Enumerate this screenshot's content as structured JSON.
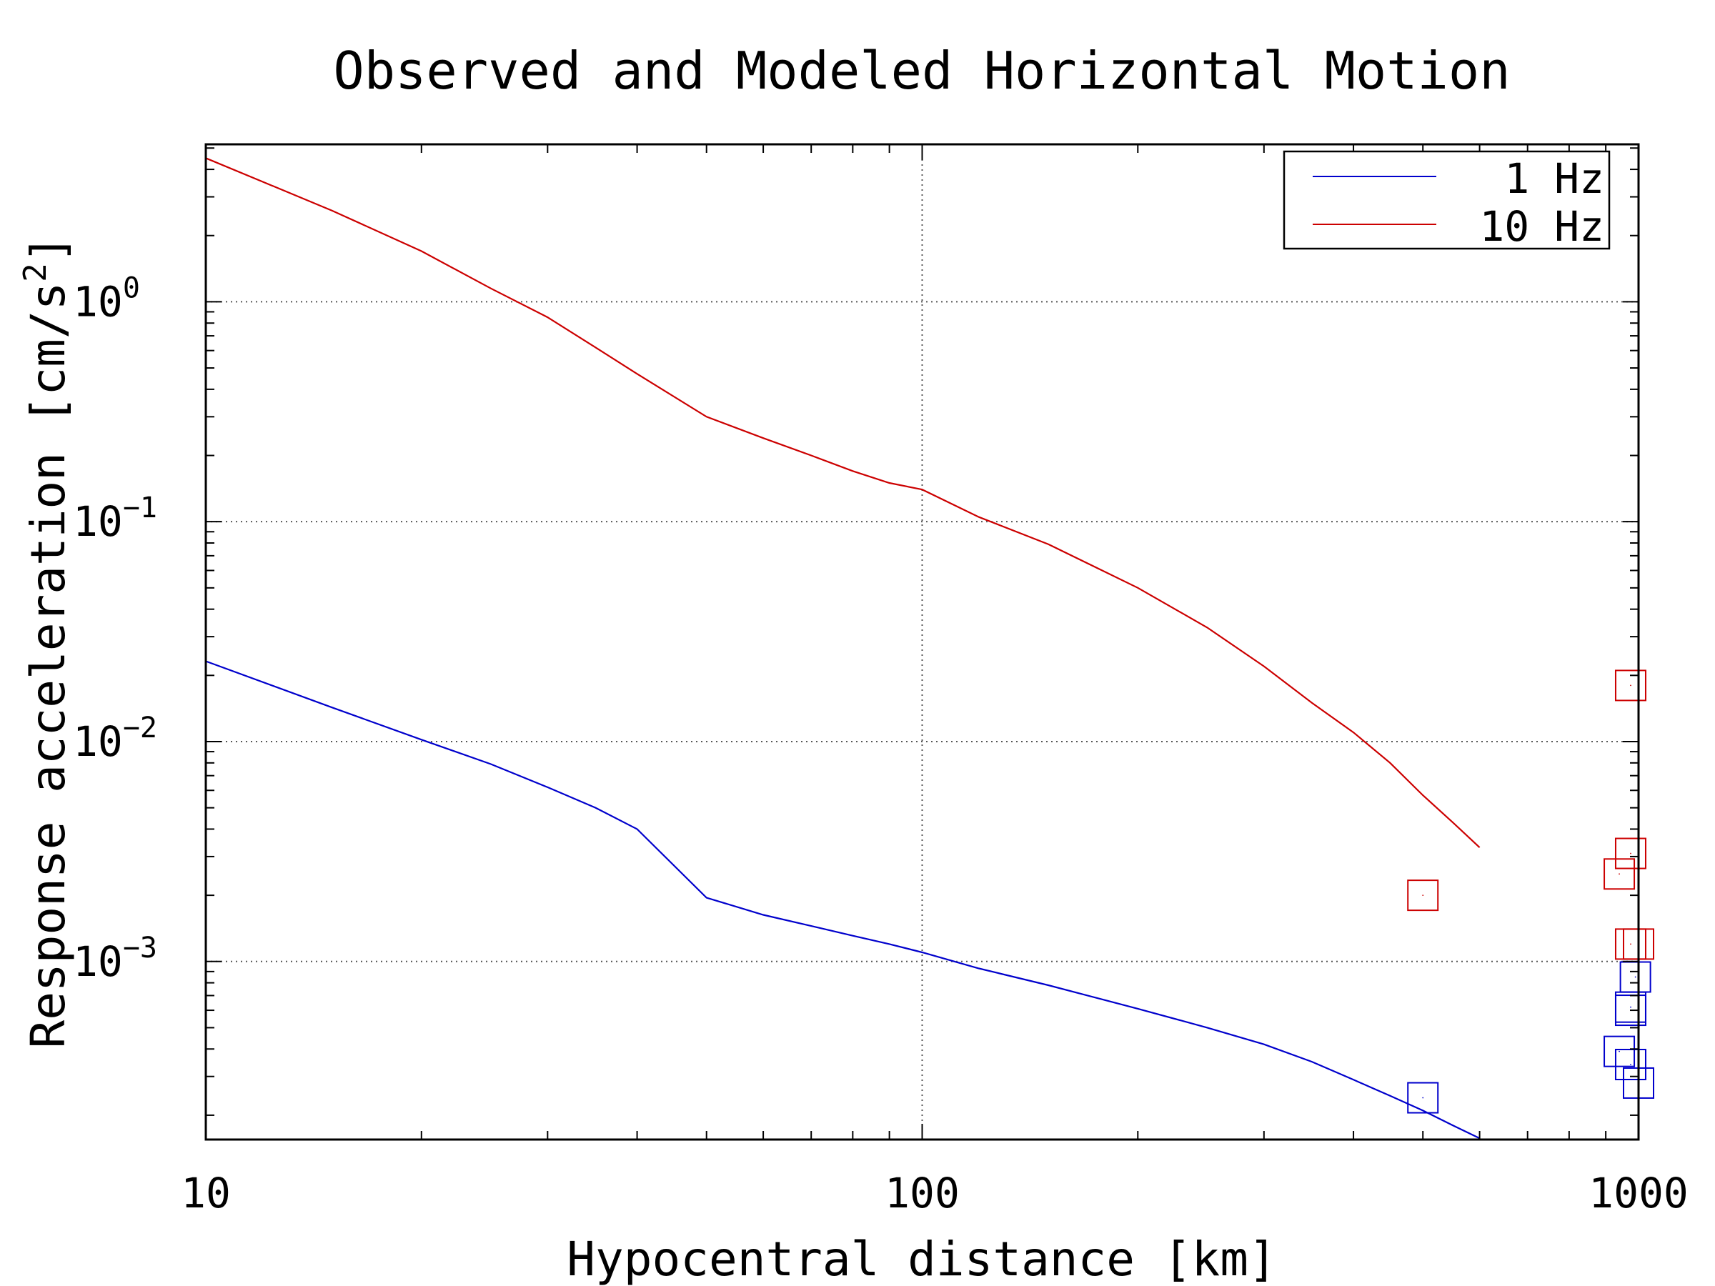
{
  "chart_data": {
    "type": "line",
    "title": "Observed and Modeled Horizontal Motion",
    "xlabel": "Hypocentral distance [km]",
    "ylabel": "Response acceleration [cm/s",
    "ylabel_sup": "2",
    "ylabel_end": "]",
    "x_scale": "log",
    "y_scale": "log",
    "xlim": [
      10,
      1000
    ],
    "ylim": [
      0.000155,
      5.2
    ],
    "grid": "dotted at major ticks",
    "legend_position": "top-right",
    "x_ticks": [
      {
        "value": 10,
        "label": "10"
      },
      {
        "value": 100,
        "label": "100"
      },
      {
        "value": 1000,
        "label": "1000"
      }
    ],
    "y_ticks": [
      {
        "value": 1,
        "base": "10",
        "exp": "0"
      },
      {
        "value": 0.1,
        "base": "10",
        "exp": "−1"
      },
      {
        "value": 0.01,
        "base": "10",
        "exp": "−2"
      },
      {
        "value": 0.001,
        "base": "10",
        "exp": "−3"
      }
    ],
    "series": [
      {
        "name": "1 Hz",
        "color": "#0000cc",
        "x": [
          10,
          15,
          20,
          25,
          30,
          35,
          40,
          50,
          60,
          70,
          80,
          90,
          100,
          120,
          150,
          200,
          250,
          300,
          350,
          400,
          450,
          500,
          550,
          600
        ],
        "y": [
          0.0232,
          0.0143,
          0.0102,
          0.0079,
          0.0062,
          0.005,
          0.004,
          0.00195,
          0.00163,
          0.00145,
          0.00131,
          0.0012,
          0.0011,
          0.00093,
          0.00078,
          0.00061,
          0.0005,
          0.00042,
          0.00035,
          0.00029,
          0.000245,
          0.00021,
          0.00018,
          0.000157
        ],
        "observed": {
          "x": [
            500,
            940,
            975,
            975,
            975,
            990,
            1000
          ],
          "y": [
            0.00024,
            0.00039,
            0.00034,
            0.0006,
            0.00062,
            0.00085,
            0.00028
          ]
        }
      },
      {
        "name": "10 Hz",
        "color": "#cc0000",
        "x": [
          10,
          15,
          20,
          25,
          30,
          35,
          40,
          50,
          60,
          70,
          80,
          90,
          100,
          120,
          150,
          200,
          250,
          300,
          350,
          400,
          450,
          500,
          550,
          600
        ],
        "y": [
          4.5,
          2.6,
          1.7,
          1.15,
          0.85,
          0.62,
          0.47,
          0.3,
          0.24,
          0.2,
          0.17,
          0.15,
          0.14,
          0.105,
          0.079,
          0.05,
          0.033,
          0.022,
          0.015,
          0.011,
          0.008,
          0.0057,
          0.0043,
          0.0033
        ],
        "observed": {
          "x": [
            500,
            940,
            975,
            975,
            975,
            1000
          ],
          "y": [
            0.002,
            0.0025,
            0.0031,
            0.0012,
            0.018,
            0.0012
          ]
        }
      }
    ]
  }
}
